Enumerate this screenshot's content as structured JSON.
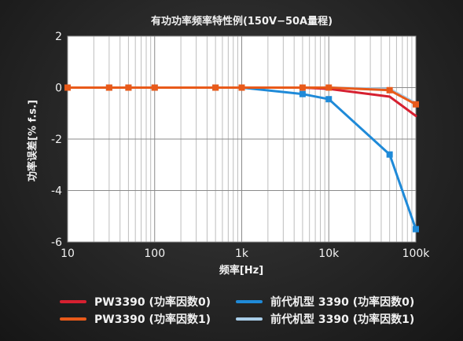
{
  "chart_data": {
    "type": "line",
    "title": "有功功率频率特性例(150V−50A量程)",
    "xlabel": "频率[Hz]",
    "ylabel": "功率误差[% f.s.]",
    "x_scale": "log",
    "xlim": [
      10,
      100000
    ],
    "ylim": [
      -6,
      2
    ],
    "x_ticks": [
      10,
      100,
      1000,
      10000,
      100000
    ],
    "x_tick_labels": [
      "10",
      "100",
      "1k",
      "10k",
      "100k"
    ],
    "y_ticks": [
      2,
      0,
      -2,
      -4,
      -6
    ],
    "y_tick_labels": [
      "2",
      "0",
      "-2",
      "-4",
      "-6"
    ],
    "grid": true,
    "legend_position": "bottom",
    "series": [
      {
        "name": "PW3390 (功率因数0)",
        "color": "#d62030",
        "marker": "none",
        "x": [
          10,
          30,
          50,
          100,
          500,
          1000,
          5000,
          10000,
          50000,
          100000
        ],
        "y": [
          0.0,
          0.0,
          0.0,
          0.0,
          0.0,
          0.0,
          0.0,
          -0.05,
          -0.35,
          -1.1
        ]
      },
      {
        "name": "PW3390 (功率因数1)",
        "color": "#e85a1a",
        "marker": "square",
        "x": [
          10,
          30,
          50,
          100,
          500,
          1000,
          5000,
          10000,
          50000,
          100000
        ],
        "y": [
          0.0,
          0.0,
          0.0,
          0.0,
          0.0,
          0.0,
          0.0,
          0.0,
          -0.1,
          -0.65
        ]
      },
      {
        "name": "前代机型 3390 (功率因数0)",
        "color": "#1f8ad8",
        "marker": "square",
        "x": [
          10,
          30,
          50,
          100,
          500,
          1000,
          5000,
          10000,
          50000,
          100000
        ],
        "y": [
          0.0,
          0.0,
          0.0,
          0.0,
          0.0,
          0.0,
          -0.25,
          -0.45,
          -2.6,
          -5.5
        ]
      },
      {
        "name": "前代机型 3390 (功率因数1)",
        "color": "#a8cde8",
        "marker": "none",
        "x": [
          10,
          30,
          50,
          100,
          500,
          1000,
          5000,
          10000,
          50000,
          100000
        ],
        "y": [
          0.0,
          0.0,
          0.0,
          0.0,
          0.0,
          0.0,
          0.0,
          0.0,
          -0.05,
          -0.6
        ]
      }
    ]
  }
}
